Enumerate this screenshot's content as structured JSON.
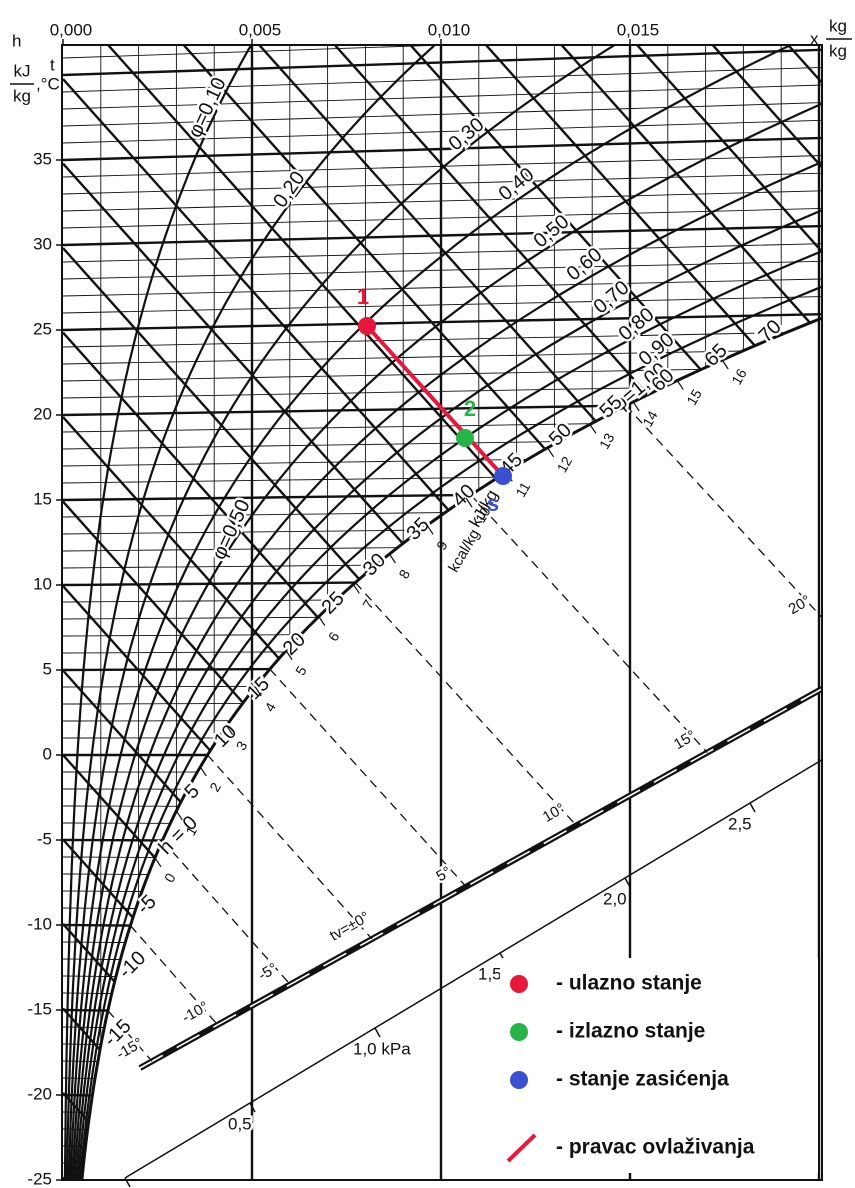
{
  "header": {
    "h": "h",
    "h_num": "kJ",
    "h_den": "kg",
    "t": "t",
    "t_unit": ",°C",
    "x": "x",
    "x_num": "kg",
    "x_den": "kg"
  },
  "x_ticks": [
    {
      "value": 0,
      "label": "0,000"
    },
    {
      "value": 0.005,
      "label": "0,005"
    },
    {
      "value": 0.01,
      "label": "0,010"
    },
    {
      "value": 0.015,
      "label": "0,015"
    }
  ],
  "t_ticks": [
    35,
    30,
    25,
    20,
    15,
    10,
    5,
    0,
    -5,
    -10,
    -15,
    -20,
    -25
  ],
  "phi_curves": [
    {
      "value": 0.1,
      "label": "φ=0,10"
    },
    {
      "value": 0.2,
      "label": "0,20"
    },
    {
      "value": 0.3,
      "label": "0,30"
    },
    {
      "value": 0.4,
      "label": "0,40"
    },
    {
      "value": 0.5,
      "label": "0,50"
    },
    {
      "value": 0.6,
      "label": "0,60"
    },
    {
      "value": 0.7,
      "label": "0,70"
    },
    {
      "value": 0.8,
      "label": "0,80"
    },
    {
      "value": 0.9,
      "label": "0,90"
    },
    {
      "value": 1.0,
      "label": "φ=1,00"
    }
  ],
  "phi_extra_label": "φ=0,50",
  "enthalpy_lines": [
    70,
    65,
    60,
    55,
    50,
    45,
    40,
    35,
    30,
    25,
    20,
    15,
    10,
    5,
    {
      "value": 0,
      "label": "h = 0"
    },
    -5,
    -10,
    -15
  ],
  "enthalpy_unit": "kJ/kg",
  "kcal_ticks": [
    16,
    15,
    14,
    13,
    12,
    11,
    10,
    9,
    8,
    7,
    6,
    5,
    4,
    3,
    2,
    1,
    0
  ],
  "kcal_unit": "kcal/kg",
  "wet_bulb": [
    {
      "value": 20,
      "label": "20°"
    },
    {
      "value": 15,
      "label": "15°"
    },
    {
      "value": 10,
      "label": "10°"
    },
    {
      "value": 5,
      "label": "5°"
    },
    {
      "value": 0,
      "label": "tv=±0°"
    },
    {
      "value": -5,
      "label": "-5°"
    },
    {
      "value": -10,
      "label": "-10°"
    },
    {
      "value": -15,
      "label": "-15°"
    }
  ],
  "pressure_ticks": [
    {
      "value": 2.5,
      "label": "2,5"
    },
    {
      "value": 2,
      "label": "2,0"
    },
    {
      "value": 1.5,
      "label": "1,5"
    },
    {
      "value": 1,
      "label": "1,0 kPa"
    },
    {
      "value": 0.5,
      "label": "0,5"
    },
    0
  ],
  "points": {
    "p1": "1",
    "p2": "2",
    "s": "s"
  },
  "legend": [
    "- ulazno stanje",
    "- izlazno stanje",
    "- stanje zasićenja",
    "- pravac ovlaživanja"
  ]
}
